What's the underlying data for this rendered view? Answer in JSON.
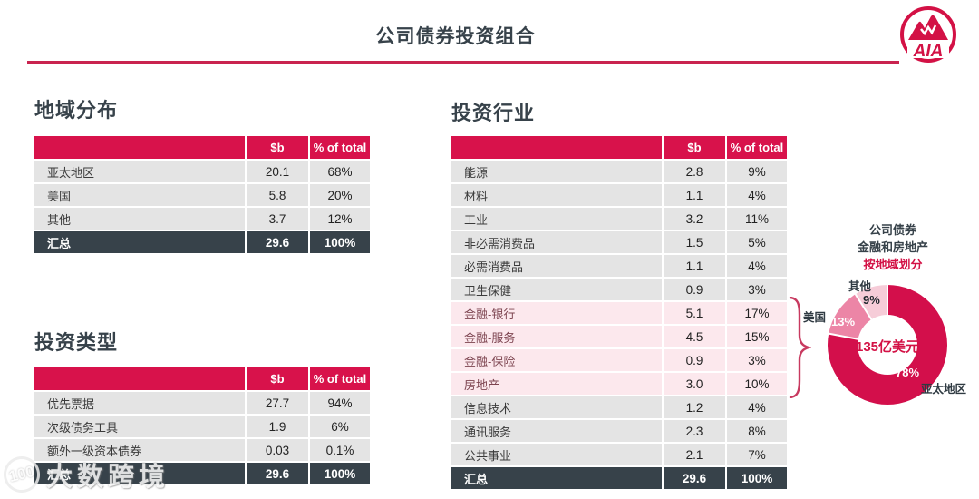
{
  "page": {
    "title": "公司债券投资组合"
  },
  "logo": {
    "brand": "AIA"
  },
  "colors": {
    "brand_red": "#d31145",
    "table_header_red": "#d8124b",
    "dark_slate": "#37424a",
    "row_gray": "#e4e4e4",
    "highlight_pink": "#fce8ed",
    "highlight_label": "#7d4450",
    "donut_apac": "#d30f4b",
    "donut_us": "#ec85a6",
    "donut_other": "#f6ccd8"
  },
  "tables": {
    "region": {
      "title": "地域分布",
      "headers": {
        "value": "$b",
        "pct": "% of total"
      },
      "rows": [
        {
          "label": "亚太地区",
          "value": "20.1",
          "pct": "68%"
        },
        {
          "label": "美国",
          "value": "5.8",
          "pct": "20%"
        },
        {
          "label": "其他",
          "value": "3.7",
          "pct": "12%"
        }
      ],
      "total": {
        "label": "汇总",
        "value": "29.6",
        "pct": "100%"
      }
    },
    "type": {
      "title": "投资类型",
      "headers": {
        "value": "$b",
        "pct": "% of total"
      },
      "rows": [
        {
          "label": "优先票据",
          "value": "27.7",
          "pct": "94%"
        },
        {
          "label": "次级债务工具",
          "value": "1.9",
          "pct": "6%"
        },
        {
          "label": "额外一级资本债券",
          "value": "0.03",
          "pct": "0.1%"
        }
      ],
      "total": {
        "label": "汇总",
        "value": "29.6",
        "pct": "100%"
      }
    },
    "industry": {
      "title": "投资行业",
      "headers": {
        "value": "$b",
        "pct": "% of total"
      },
      "rows": [
        {
          "label": "能源",
          "value": "2.8",
          "pct": "9%"
        },
        {
          "label": "材料",
          "value": "1.1",
          "pct": "4%"
        },
        {
          "label": "工业",
          "value": "3.2",
          "pct": "11%"
        },
        {
          "label": "非必需消费品",
          "value": "1.5",
          "pct": "5%"
        },
        {
          "label": "必需消费品",
          "value": "1.1",
          "pct": "4%"
        },
        {
          "label": "卫生保健",
          "value": "0.9",
          "pct": "3%"
        },
        {
          "label": "金融-银行",
          "value": "5.1",
          "pct": "17%",
          "highlight": true
        },
        {
          "label": "金融-服务",
          "value": "4.5",
          "pct": "15%",
          "highlight": true
        },
        {
          "label": "金融-保险",
          "value": "0.9",
          "pct": "3%",
          "highlight": true
        },
        {
          "label": "房地产",
          "value": "3.0",
          "pct": "10%",
          "highlight": true
        },
        {
          "label": "信息技术",
          "value": "1.2",
          "pct": "4%"
        },
        {
          "label": "通讯服务",
          "value": "2.3",
          "pct": "8%"
        },
        {
          "label": "公共事业",
          "value": "2.1",
          "pct": "7%"
        }
      ],
      "total": {
        "label": "汇总",
        "value": "29.6",
        "pct": "100%"
      }
    }
  },
  "chart_data": {
    "type": "pie",
    "donut": true,
    "title_lines": [
      "公司债券",
      "金融和房地产",
      "按地域划分"
    ],
    "center_label": "135亿美元",
    "segments": [
      {
        "label": "亚太地区",
        "value": 78,
        "pct_label": "78%",
        "color": "#d30f4b"
      },
      {
        "label": "美国",
        "value": 13,
        "pct_label": "13%",
        "color": "#ec85a6"
      },
      {
        "label": "其他",
        "value": 9,
        "pct_label": "9%",
        "color": "#f6ccd8"
      }
    ],
    "legend_position": "labels-on-chart",
    "start_angle_deg": 0,
    "direction": "clockwise"
  },
  "watermark": {
    "badge": "100",
    "text": "大数跨境"
  }
}
